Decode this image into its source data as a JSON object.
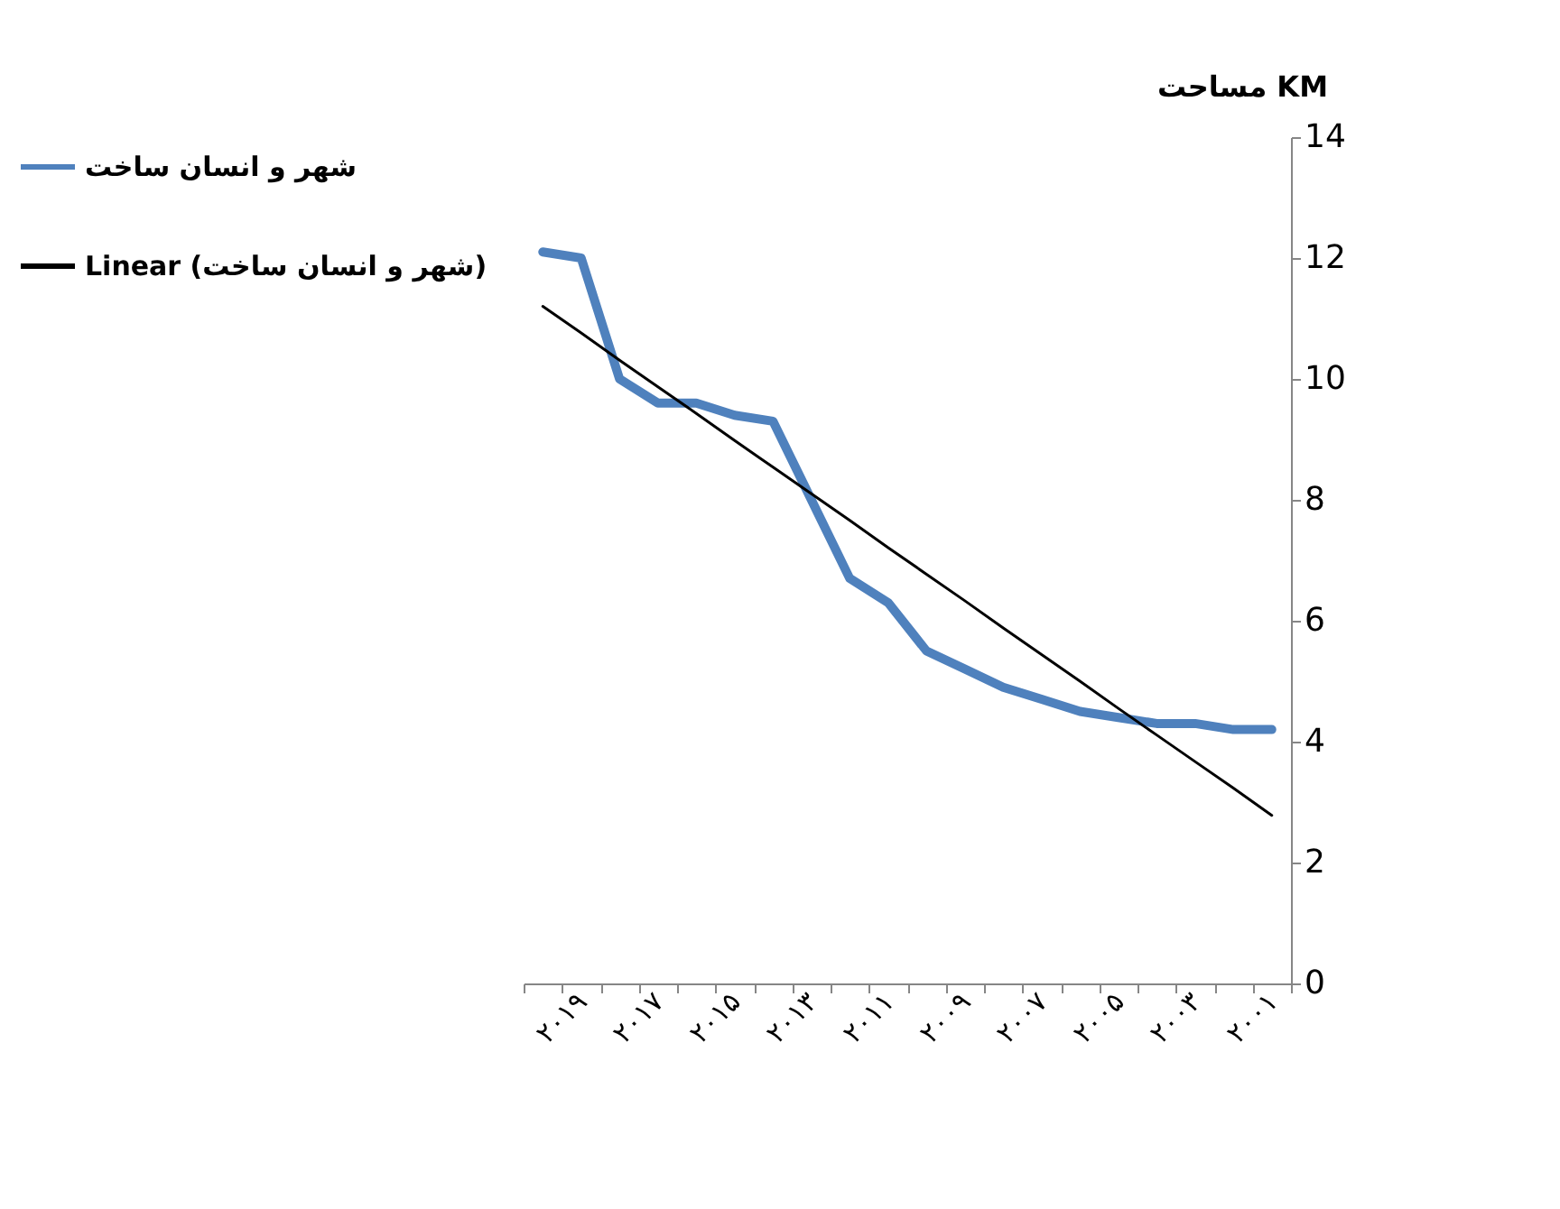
{
  "chart_data": {
    "type": "line",
    "ylabel": "مساحت KM",
    "categories": [
      null,
      "۲۰۱۹",
      null,
      "۲۰۱۷",
      null,
      "۲۰۱۵",
      null,
      "۲۰۱۳",
      null,
      "۲۰۱۱",
      null,
      "۲۰۰۹",
      null,
      "۲۰۰۷",
      null,
      "۲۰۰۵",
      null,
      "۲۰۰۳",
      null,
      "۲۰۰۱"
    ],
    "ylim": [
      0,
      14
    ],
    "yticks": [
      0,
      2,
      4,
      6,
      8,
      10,
      12,
      14
    ],
    "grid": false,
    "legend": "left",
    "marker": "none",
    "line_style": "solid",
    "series": [
      {
        "name": "شهر و انسان ساخت",
        "color": "#4f81bd",
        "values": [
          12.1,
          12.0,
          10.0,
          9.6,
          9.6,
          9.4,
          9.3,
          8.0,
          6.7,
          6.3,
          5.5,
          5.2,
          4.9,
          4.7,
          4.5,
          4.4,
          4.3,
          4.3,
          4.2,
          4.2
        ]
      },
      {
        "name": "Linear (شهر و انسان ساخت)",
        "color": "#000000",
        "values": [
          11.2,
          10.76,
          10.31,
          9.87,
          9.43,
          8.98,
          8.54,
          8.1,
          7.66,
          7.21,
          6.77,
          6.33,
          5.88,
          5.44,
          5.0,
          4.55,
          4.11,
          3.67,
          3.23,
          2.78
        ]
      }
    ]
  }
}
